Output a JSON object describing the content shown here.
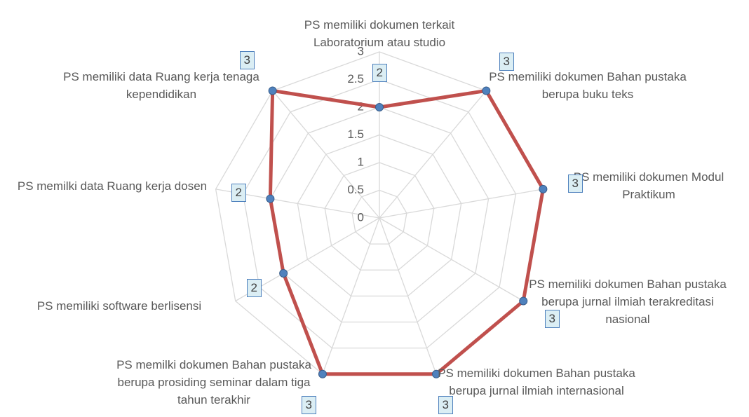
{
  "chart_data": {
    "type": "radar",
    "categories": [
      "PS memiliki dokumen terkait Laboratorium atau studio",
      "PS memiliki dokumen Bahan pustaka berupa buku teks",
      "PS memiliki dokumen Modul Praktikum",
      "PS memiliki dokumen Bahan pustaka berupa jurnal ilmiah terakreditasi nasional",
      "PS memiliki dokumen Bahan pustaka berupa jurnal ilmiah internasional",
      "PS memilki dokumen Bahan pustaka berupa prosiding seminar dalam tiga tahun terakhir",
      "PS memiliki software berlisensi",
      "PS memilki data Ruang kerja dosen",
      "PS memiliki data Ruang kerja tenaga kependidikan"
    ],
    "values": [
      2,
      3,
      3,
      3,
      3,
      3,
      2,
      2,
      3
    ],
    "color": "#c0504d",
    "marker_color": "#4f81bd",
    "ylim": [
      0,
      3
    ],
    "yticks": [
      0,
      0.5,
      1,
      1.5,
      2,
      2.5,
      3
    ],
    "grid": true
  }
}
